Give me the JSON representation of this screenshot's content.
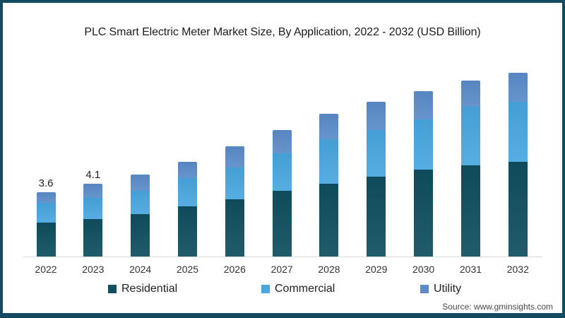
{
  "page": {
    "source_label": "Source: www.gminsights.com"
  },
  "chart_data": {
    "type": "bar",
    "variant": "stacked",
    "title": "PLC Smart Electric Meter Market Size, By Application, 2022 - 2032 (USD Billion)",
    "unit": "USD Billion",
    "categories": [
      "2022",
      "2023",
      "2024",
      "2025",
      "2026",
      "2027",
      "2028",
      "2029",
      "2030",
      "2031",
      "2032"
    ],
    "series": [
      {
        "name": "Residential",
        "color": "#0F4F5F",
        "values": [
          1.9,
          2.1,
          2.4,
          2.8,
          3.2,
          3.7,
          4.1,
          4.5,
          4.9,
          5.1,
          5.3
        ]
      },
      {
        "name": "Commercial",
        "color": "#49A7DF",
        "values": [
          1.1,
          1.2,
          1.3,
          1.6,
          1.8,
          2.1,
          2.5,
          2.6,
          2.8,
          3.3,
          3.4
        ]
      },
      {
        "name": "Utility",
        "color": "#5B8CC9",
        "values": [
          0.6,
          0.8,
          0.9,
          0.9,
          1.2,
          1.3,
          1.4,
          1.6,
          1.6,
          1.5,
          1.6
        ]
      }
    ],
    "totals": [
      3.6,
      4.1,
      4.6,
      5.3,
      6.2,
      7.1,
      8.0,
      8.7,
      9.3,
      9.9,
      10.3
    ],
    "bar_labels": {
      "2022": "3.6",
      "2023": "4.1"
    },
    "legend_position": "bottom",
    "grid": false,
    "y_axis_visible": false,
    "x_axis_line_color": "#D8DCDE",
    "frame_color": "#154A63"
  }
}
